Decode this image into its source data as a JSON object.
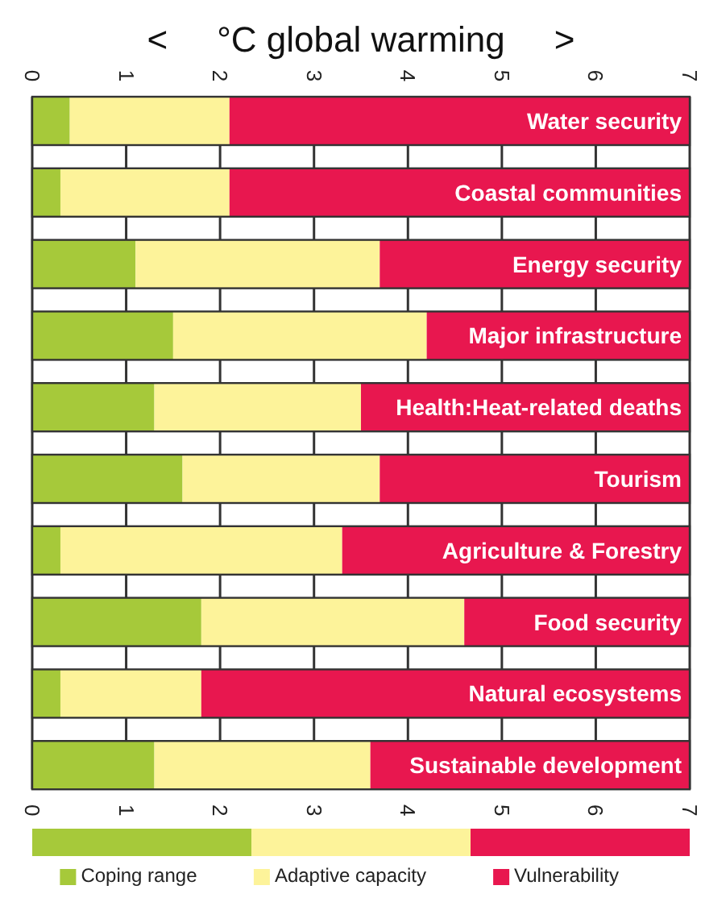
{
  "chart_data": {
    "type": "bar",
    "orientation": "horizontal",
    "stacked": true,
    "title": "<     °C global warming     >",
    "categories": [
      "Water security",
      "Coastal communities",
      "Energy security",
      "Major infrastructure",
      "Health:Heat-related deaths",
      "Tourism",
      "Agriculture & Forestry",
      "Food security",
      "Natural ecosystems",
      "Sustainable development"
    ],
    "series": [
      {
        "name": "Coping range",
        "color": "#a6c93a",
        "values": [
          0.4,
          0.3,
          1.1,
          1.5,
          1.3,
          1.6,
          0.3,
          1.8,
          0.3,
          1.3
        ]
      },
      {
        "name": "Adaptive capacity",
        "color": "#fdf39a",
        "values": [
          1.7,
          1.8,
          2.6,
          2.7,
          2.2,
          2.1,
          3.0,
          2.8,
          1.5,
          2.3
        ]
      },
      {
        "name": "Vulnerability",
        "color": "#e8174f",
        "values": [
          4.9,
          4.9,
          3.3,
          2.8,
          3.5,
          3.3,
          3.7,
          2.4,
          5.2,
          3.4
        ]
      }
    ],
    "xlim": [
      0,
      7
    ],
    "xticks": [
      0,
      1,
      2,
      3,
      4,
      5,
      6,
      7
    ],
    "x2lim": [
      0,
      7
    ],
    "x2ticks": [
      0,
      1,
      2,
      3,
      4,
      5,
      6,
      7
    ],
    "grid": "x",
    "legend": "bottom"
  }
}
